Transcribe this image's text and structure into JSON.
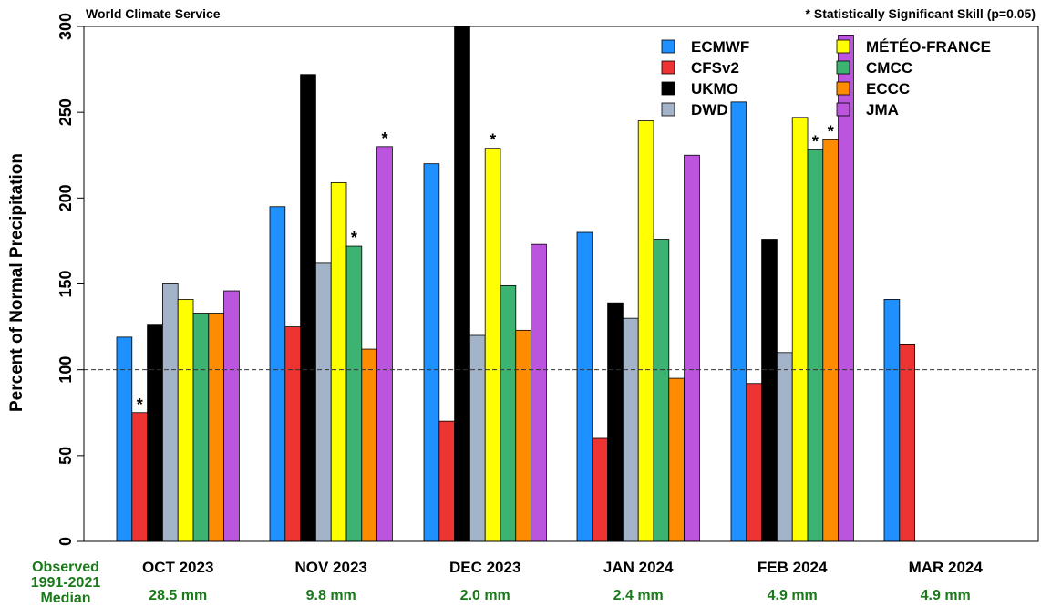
{
  "chart_data": {
    "type": "bar",
    "source_label": "World Climate Service",
    "note": "* Statistically Significant Skill (p=0.05)",
    "ylabel": "Percent of Normal Precipitation",
    "ylim": [
      0,
      300
    ],
    "yticks": [
      "0",
      "50",
      "100",
      "150",
      "200",
      "250",
      "300"
    ],
    "reference_line": 100,
    "categories": [
      "OCT 2023",
      "NOV 2023",
      "DEC 2023",
      "JAN 2024",
      "FEB 2024",
      "MAR 2024"
    ],
    "observed_label": "Observed\n1991-2021\nMedian",
    "observed_medians": [
      "28.5 mm",
      "9.8 mm",
      "2.0 mm",
      "2.4 mm",
      "4.9 mm",
      "4.9 mm"
    ],
    "series": [
      {
        "name": "ECMWF",
        "color": "#1e90ff",
        "values": [
          119,
          195,
          220,
          180,
          256,
          141
        ],
        "significant": [
          false,
          false,
          false,
          false,
          false,
          false
        ]
      },
      {
        "name": "CFSv2",
        "color": "#ee3333",
        "values": [
          75,
          125,
          70,
          60,
          92,
          115
        ],
        "significant": [
          true,
          false,
          false,
          false,
          false,
          false
        ]
      },
      {
        "name": "UKMO",
        "color": "#000000",
        "values": [
          126,
          272,
          300,
          139,
          176,
          null
        ],
        "significant": [
          false,
          false,
          false,
          false,
          false,
          false
        ]
      },
      {
        "name": "DWD",
        "color": "#a4b4c8",
        "values": [
          150,
          162,
          120,
          130,
          110,
          null
        ],
        "significant": [
          false,
          false,
          false,
          false,
          false,
          false
        ]
      },
      {
        "name": "MÉTÉO-FRANCE",
        "color": "#ffff00",
        "values": [
          141,
          209,
          229,
          245,
          247,
          null
        ],
        "significant": [
          false,
          false,
          true,
          false,
          false,
          false
        ]
      },
      {
        "name": "CMCC",
        "color": "#3cb371",
        "values": [
          133,
          172,
          149,
          176,
          228,
          null
        ],
        "significant": [
          false,
          true,
          false,
          false,
          true,
          false
        ]
      },
      {
        "name": "ECCC",
        "color": "#ff8c00",
        "values": [
          133,
          112,
          123,
          95,
          234,
          null
        ],
        "significant": [
          false,
          false,
          false,
          false,
          true,
          false
        ]
      },
      {
        "name": "JMA",
        "color": "#bb55dd",
        "values": [
          146,
          230,
          173,
          225,
          295,
          null
        ],
        "significant": [
          false,
          true,
          false,
          false,
          false,
          false
        ]
      }
    ],
    "grid": false,
    "legend_position": "top-right"
  },
  "colors": {
    "observed_text": "#1a7a1a"
  }
}
